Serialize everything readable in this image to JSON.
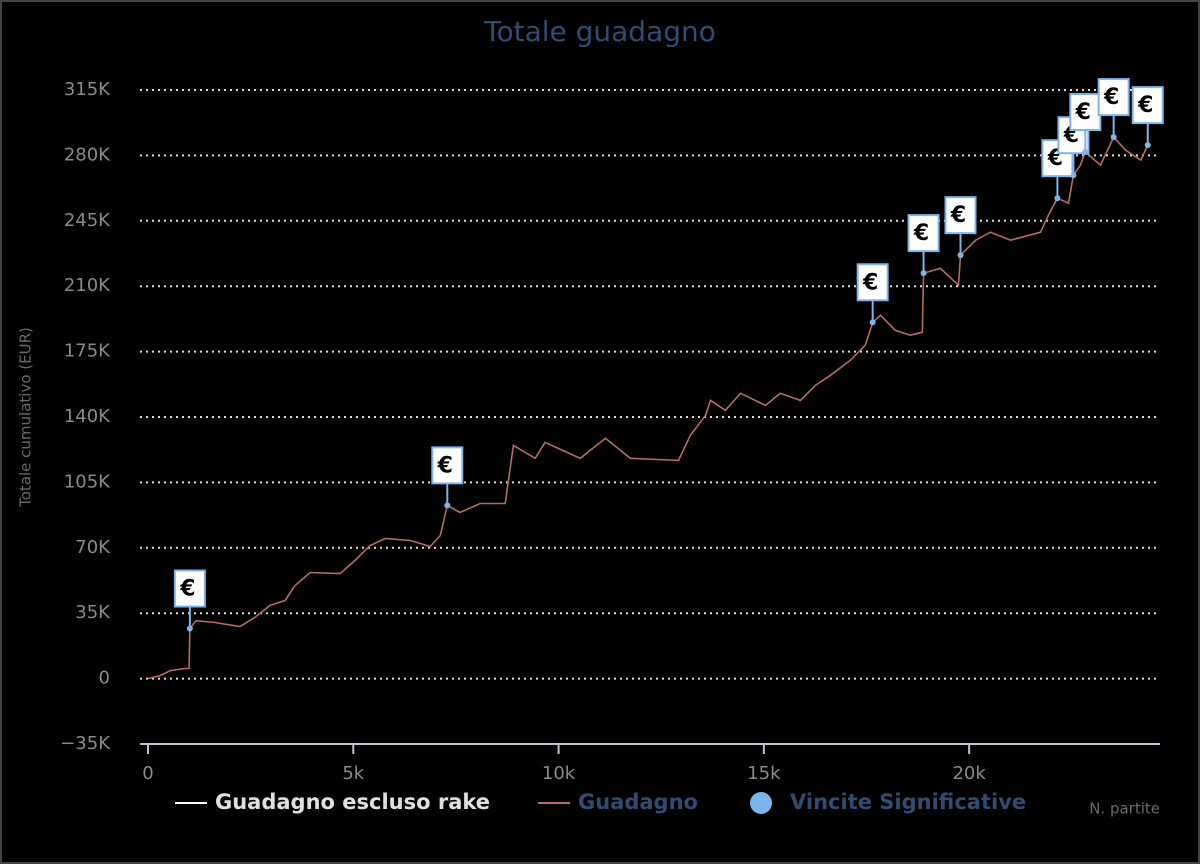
{
  "chart_data": {
    "type": "line",
    "title": "Totale guadagno",
    "y_label": "Totale cumulativo (EUR)",
    "x_label": "N. partite",
    "xlim": [
      0,
      24600
    ],
    "ylim": [
      -35000,
      315000
    ],
    "xticks": [
      0,
      {
        "value": 5000,
        "label": "5k"
      },
      {
        "value": 10000,
        "label": "10k"
      },
      {
        "value": 15000,
        "label": "15k"
      },
      {
        "value": 20000,
        "label": "20k"
      }
    ],
    "yticks": [
      {
        "value": -35000,
        "label": "−35K"
      },
      0,
      {
        "value": 35000,
        "label": "35K"
      },
      {
        "value": 70000,
        "label": "70K"
      },
      {
        "value": 105000,
        "label": "105K"
      },
      {
        "value": 140000,
        "label": "140K"
      },
      {
        "value": 175000,
        "label": "175K"
      },
      {
        "value": 210000,
        "label": "210K"
      },
      {
        "value": 245000,
        "label": "245K"
      },
      {
        "value": 280000,
        "label": "280K"
      },
      {
        "value": 315000,
        "label": "315K"
      }
    ],
    "grid": true,
    "series": [
      {
        "name": "Guadagno escluso rake",
        "color": "#ffffff"
      },
      {
        "name": "Guadagno",
        "color": "#b96a64",
        "x": [
          0,
          300,
          540,
          900,
          1000,
          1020,
          1170,
          1630,
          2240,
          2600,
          2970,
          3340,
          3580,
          3950,
          4680,
          5040,
          5410,
          5780,
          6390,
          6870,
          7120,
          7290,
          7600,
          8090,
          8700,
          8900,
          9430,
          9670,
          10530,
          11140,
          11750,
          12920,
          13210,
          13580,
          13700,
          14060,
          14430,
          15040,
          15400,
          15890,
          16260,
          16620,
          17110,
          17470,
          17650,
          17840,
          18200,
          18570,
          18860,
          18890,
          19300,
          19740,
          19790,
          20160,
          20520,
          21010,
          21740,
          21930,
          22150,
          22420,
          22540,
          22710,
          22830,
          23200,
          23520,
          23810,
          24180,
          24350
        ],
        "values": [
          0,
          1600,
          4300,
          5400,
          5400,
          26800,
          31000,
          30000,
          27900,
          32700,
          39100,
          41800,
          49800,
          56800,
          56200,
          63200,
          71200,
          75000,
          73900,
          70700,
          76600,
          92700,
          88900,
          93700,
          93700,
          124800,
          117900,
          126400,
          117900,
          128600,
          117900,
          116800,
          130200,
          140900,
          148900,
          143600,
          152700,
          146200,
          152700,
          148900,
          157000,
          162300,
          170400,
          178400,
          190700,
          194500,
          186400,
          183800,
          185400,
          217000,
          219600,
          210500,
          226600,
          234600,
          238900,
          234600,
          238900,
          248000,
          257100,
          254400,
          269400,
          274800,
          281800,
          274800,
          289800,
          282800,
          277500,
          285500
        ]
      },
      {
        "name": "Vincite Significative",
        "type": "scatter",
        "color": "#7cb5ec",
        "flag_label": "€",
        "x": [
          1020,
          7290,
          17650,
          18890,
          19790,
          22150,
          22540,
          22830,
          23520,
          24350
        ],
        "values": [
          26800,
          92700,
          190700,
          217000,
          226600,
          257100,
          269400,
          281800,
          289800,
          285500
        ]
      }
    ]
  }
}
